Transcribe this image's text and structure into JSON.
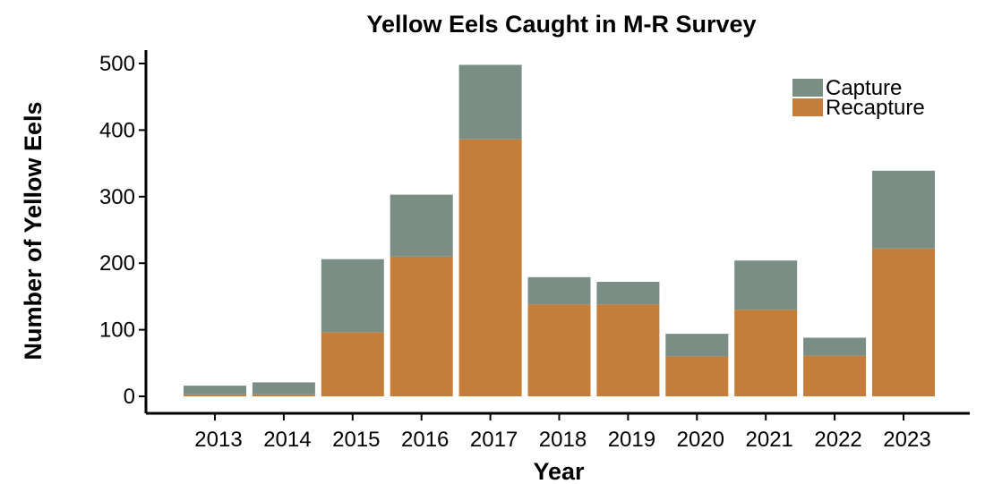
{
  "chart_data": {
    "type": "bar",
    "stacked": true,
    "title": "Yellow Eels Caught in M-R Survey",
    "xlabel": "Year",
    "ylabel": "Number of Yellow Eels",
    "categories": [
      "2013",
      "2014",
      "2015",
      "2016",
      "2017",
      "2018",
      "2019",
      "2020",
      "2021",
      "2022",
      "2023"
    ],
    "series": [
      {
        "name": "Recapture",
        "color": "#C47E3A",
        "values": [
          3,
          3,
          96,
          210,
          386,
          138,
          138,
          60,
          130,
          61,
          222
        ]
      },
      {
        "name": "Capture",
        "color": "#7A8E86",
        "values": [
          13,
          18,
          110,
          93,
          112,
          41,
          34,
          34,
          74,
          27,
          117
        ]
      }
    ],
    "ylim": [
      0,
      520
    ],
    "yticks": [
      0,
      100,
      200,
      300,
      400,
      500
    ],
    "grid": false,
    "legend": {
      "position": "top-right",
      "entries": [
        "Capture",
        "Recapture"
      ]
    }
  }
}
